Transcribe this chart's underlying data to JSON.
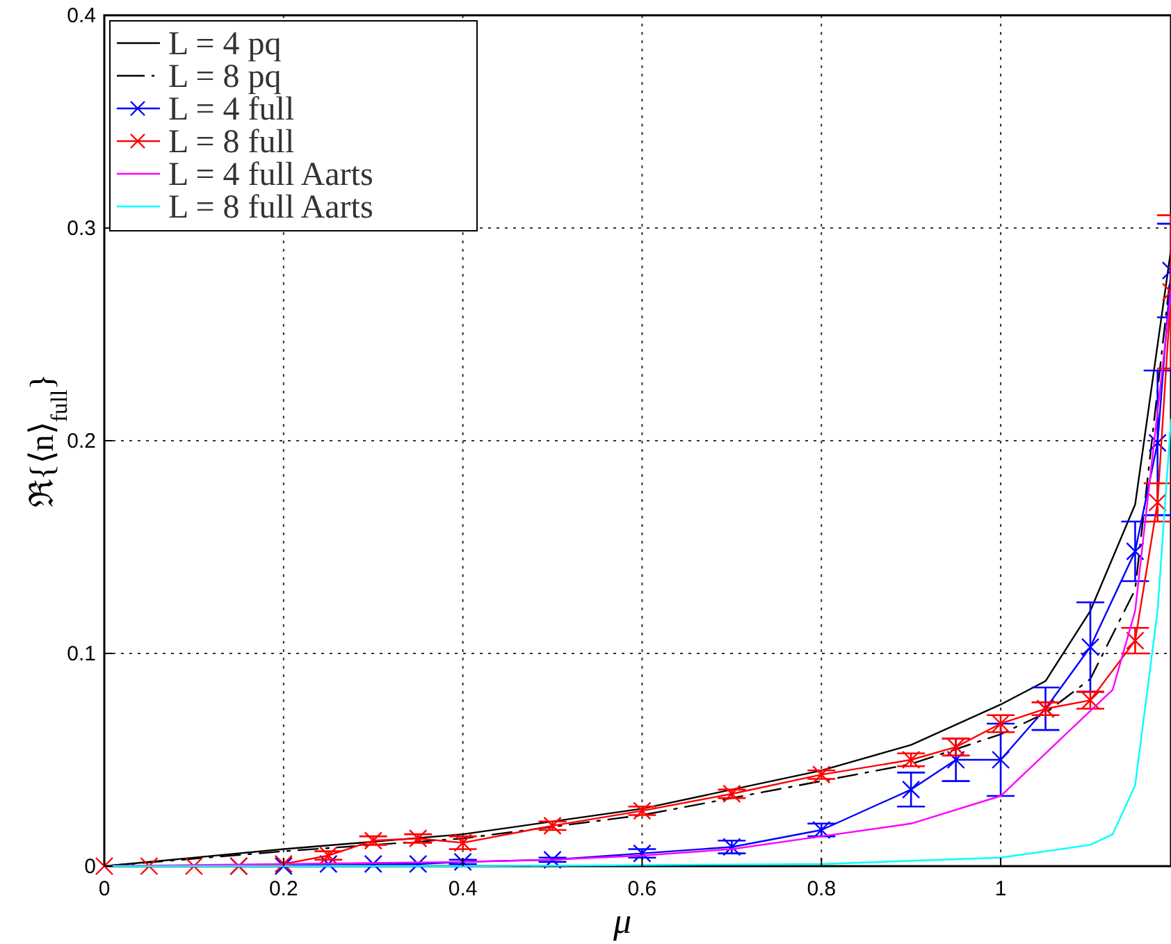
{
  "chart_data": {
    "type": "line",
    "xlabel": "μ",
    "ylabel": "ℜ{⟨n⟩$_{full}$}",
    "xlim": [
      0,
      1.19
    ],
    "ylim": [
      0,
      0.4
    ],
    "xticks": [
      0,
      0.2,
      0.4,
      0.6,
      0.8,
      1
    ],
    "yticks": [
      0,
      0.1,
      0.2,
      0.3,
      0.4
    ],
    "grid": true,
    "legend": "top left",
    "series": [
      {
        "name": "L = 4 pq",
        "color": "#000000",
        "marker": "none",
        "line_style": "solid",
        "x": [
          0,
          0.2,
          0.4,
          0.6,
          0.8,
          0.9,
          1,
          1.05,
          1.1,
          1.15,
          1.19
        ],
        "values": [
          0,
          0.008,
          0.015,
          0.027,
          0.045,
          0.057,
          0.076,
          0.087,
          0.12,
          0.17,
          0.29
        ]
      },
      {
        "name": "L = 8 pq",
        "color": "#000000",
        "marker": "none",
        "line_style": "dashed",
        "x": [
          0,
          0.2,
          0.4,
          0.6,
          0.8,
          0.9,
          1,
          1.05,
          1.1,
          1.15,
          1.19
        ],
        "values": [
          0,
          0.007,
          0.013,
          0.024,
          0.04,
          0.048,
          0.062,
          0.072,
          0.088,
          0.13,
          0.28
        ]
      },
      {
        "name": "L = 4 full",
        "color": "#0000ff",
        "marker": "cross",
        "line_style": "solid",
        "x": [
          0.15,
          0.2,
          0.25,
          0.3,
          0.35,
          0.4,
          0.5,
          0.6,
          0.7,
          0.8,
          0.9,
          0.95,
          1,
          1.05,
          1.1,
          1.15,
          1.175,
          1.19
        ],
        "values": [
          0,
          0,
          0.001,
          0.001,
          0.001,
          0.002,
          0.003,
          0.006,
          0.009,
          0.017,
          0.036,
          0.05,
          0.05,
          0.074,
          0.103,
          0.148,
          0.199,
          0.28
        ],
        "errors": [
          null,
          null,
          null,
          null,
          null,
          0.001,
          0.001,
          0.002,
          0.003,
          0.003,
          0.008,
          0.01,
          0.017,
          0.01,
          0.021,
          0.014,
          0.034,
          0.022
        ]
      },
      {
        "name": "L = 8 full",
        "color": "#ff0000",
        "marker": "cross",
        "line_style": "solid",
        "x": [
          0,
          0.05,
          0.1,
          0.15,
          0.2,
          0.25,
          0.3,
          0.35,
          0.4,
          0.5,
          0.6,
          0.7,
          0.8,
          0.9,
          0.95,
          1,
          1.05,
          1.1,
          1.15,
          1.175,
          1.19
        ],
        "values": [
          0,
          0,
          0,
          0,
          0.001,
          0.005,
          0.012,
          0.013,
          0.011,
          0.019,
          0.026,
          0.034,
          0.043,
          0.05,
          0.056,
          0.067,
          0.074,
          0.078,
          0.106,
          0.171,
          0.27
        ],
        "errors": [
          null,
          null,
          null,
          null,
          null,
          0.002,
          0.002,
          0.002,
          0.003,
          0.002,
          0.002,
          0.002,
          0.002,
          0.003,
          0.004,
          0.004,
          0.003,
          0.004,
          0.006,
          0.009,
          0.036
        ]
      },
      {
        "name": "L = 4 full Aarts",
        "color": "#ff00ff",
        "marker": "none",
        "line_style": "solid",
        "x": [
          0,
          0.2,
          0.4,
          0.5,
          0.6,
          0.7,
          0.8,
          0.9,
          1,
          1.05,
          1.1,
          1.125,
          1.15,
          1.19
        ],
        "values": [
          0,
          0.001,
          0.002,
          0.003,
          0.005,
          0.008,
          0.014,
          0.02,
          0.033,
          0.053,
          0.073,
          0.083,
          0.12,
          0.27
        ]
      },
      {
        "name": "L = 8 full Aarts",
        "color": "#00ffff",
        "marker": "none",
        "line_style": "solid",
        "x": [
          0,
          0.4,
          0.8,
          1,
          1.1,
          1.125,
          1.15,
          1.175,
          1.19
        ],
        "values": [
          0,
          0,
          0.001,
          0.004,
          0.01,
          0.015,
          0.038,
          0.12,
          0.21
        ]
      }
    ]
  }
}
